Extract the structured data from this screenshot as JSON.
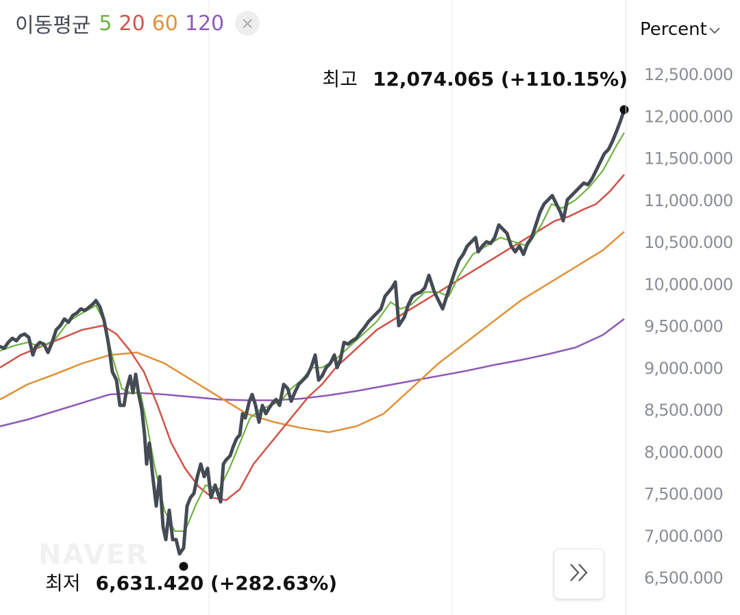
{
  "legend": {
    "title": "이동평균",
    "items": [
      {
        "label": "5",
        "color": "#6db33f"
      },
      {
        "label": "20",
        "color": "#d0554b"
      },
      {
        "label": "60",
        "color": "#e0923a"
      },
      {
        "label": "120",
        "color": "#8e5bb6"
      }
    ],
    "close_icon": "×"
  },
  "unit_selector": {
    "label": "Percent",
    "icon": "chevron-down-icon"
  },
  "annotations": {
    "high": {
      "label": "최고",
      "value": "12,074.065 (+110.15%)"
    },
    "low": {
      "label": "최저",
      "value": "6,631.420 (+282.63%)"
    }
  },
  "watermark": "NAVER",
  "nav_button": {
    "icon": "double-chevron-right-icon"
  },
  "chart_data": {
    "type": "line",
    "ylim": [
      6300,
      12700
    ],
    "y_ticks": [
      "6,500.000",
      "7,000.000",
      "7,500.000",
      "8,000.000",
      "8,500.000",
      "9,000.000",
      "9,500.000",
      "10,000.000",
      "10,500.000",
      "11,000.000",
      "11,500.000",
      "12,000.000",
      "12,500.000"
    ],
    "y_tick_values": [
      6500,
      7000,
      7500,
      8000,
      8500,
      9000,
      9500,
      10000,
      10500,
      11000,
      11500,
      12000,
      12500
    ],
    "grid": "vertical",
    "price": {
      "color": "#454b54",
      "points": [
        [
          0,
          9250
        ],
        [
          6,
          9230
        ],
        [
          12,
          9300
        ],
        [
          18,
          9350
        ],
        [
          24,
          9320
        ],
        [
          30,
          9380
        ],
        [
          36,
          9400
        ],
        [
          42,
          9360
        ],
        [
          48,
          9150
        ],
        [
          52,
          9250
        ],
        [
          58,
          9300
        ],
        [
          64,
          9280
        ],
        [
          70,
          9180
        ],
        [
          76,
          9300
        ],
        [
          82,
          9450
        ],
        [
          88,
          9500
        ],
        [
          94,
          9580
        ],
        [
          100,
          9540
        ],
        [
          106,
          9620
        ],
        [
          112,
          9650
        ],
        [
          118,
          9700
        ],
        [
          124,
          9680
        ],
        [
          130,
          9720
        ],
        [
          136,
          9760
        ],
        [
          140,
          9800
        ],
        [
          146,
          9720
        ],
        [
          152,
          9560
        ],
        [
          158,
          9300
        ],
        [
          164,
          8950
        ],
        [
          170,
          8850
        ],
        [
          175,
          8550
        ],
        [
          181,
          8550
        ],
        [
          185,
          8750
        ],
        [
          190,
          8900
        ],
        [
          194,
          8700
        ],
        [
          198,
          8920
        ],
        [
          202,
          8700
        ],
        [
          207,
          8500
        ],
        [
          211,
          8200
        ],
        [
          214,
          7850
        ],
        [
          218,
          8100
        ],
        [
          223,
          7700
        ],
        [
          228,
          7350
        ],
        [
          233,
          7700
        ],
        [
          238,
          7100
        ],
        [
          242,
          6950
        ],
        [
          247,
          7300
        ],
        [
          252,
          6950
        ],
        [
          257,
          6950
        ],
        [
          262,
          6780
        ],
        [
          268,
          6850
        ],
        [
          273,
          7350
        ],
        [
          278,
          7450
        ],
        [
          283,
          7500
        ],
        [
          288,
          7700
        ],
        [
          293,
          7850
        ],
        [
          298,
          7700
        ],
        [
          303,
          7800
        ],
        [
          308,
          7450
        ],
        [
          314,
          7600
        ],
        [
          318,
          7500
        ],
        [
          322,
          7400
        ],
        [
          326,
          7850
        ],
        [
          330,
          7900
        ],
        [
          336,
          7950
        ],
        [
          340,
          8050
        ],
        [
          345,
          8150
        ],
        [
          350,
          8200
        ],
        [
          354,
          8450
        ],
        [
          358,
          8400
        ],
        [
          364,
          8600
        ],
        [
          368,
          8680
        ],
        [
          373,
          8550
        ],
        [
          378,
          8350
        ],
        [
          383,
          8550
        ],
        [
          388,
          8450
        ],
        [
          393,
          8520
        ],
        [
          398,
          8580
        ],
        [
          403,
          8620
        ],
        [
          408,
          8550
        ],
        [
          414,
          8800
        ],
        [
          420,
          8750
        ],
        [
          425,
          8600
        ],
        [
          430,
          8700
        ],
        [
          436,
          8800
        ],
        [
          442,
          8850
        ],
        [
          448,
          8900
        ],
        [
          454,
          9000
        ],
        [
          460,
          9150
        ],
        [
          465,
          8850
        ],
        [
          470,
          8900
        ],
        [
          476,
          9000
        ],
        [
          482,
          9050
        ],
        [
          488,
          9150
        ],
        [
          492,
          9000
        ],
        [
          497,
          9100
        ],
        [
          502,
          9300
        ],
        [
          508,
          9280
        ],
        [
          514,
          9320
        ],
        [
          520,
          9350
        ],
        [
          526,
          9420
        ],
        [
          532,
          9480
        ],
        [
          538,
          9550
        ],
        [
          544,
          9600
        ],
        [
          550,
          9650
        ],
        [
          556,
          9700
        ],
        [
          562,
          9850
        ],
        [
          567,
          9900
        ],
        [
          572,
          9950
        ],
        [
          577,
          10020
        ],
        [
          582,
          9500
        ],
        [
          586,
          9550
        ],
        [
          590,
          9600
        ],
        [
          596,
          9750
        ],
        [
          602,
          9850
        ],
        [
          608,
          9880
        ],
        [
          614,
          9900
        ],
        [
          620,
          9950
        ],
        [
          626,
          10100
        ],
        [
          630,
          10000
        ],
        [
          634,
          9900
        ],
        [
          640,
          9800
        ],
        [
          646,
          9700
        ],
        [
          652,
          9850
        ],
        [
          658,
          10000
        ],
        [
          664,
          10150
        ],
        [
          670,
          10280
        ],
        [
          676,
          10350
        ],
        [
          682,
          10450
        ],
        [
          688,
          10500
        ],
        [
          694,
          10550
        ],
        [
          698,
          10380
        ],
        [
          704,
          10450
        ],
        [
          710,
          10500
        ],
        [
          716,
          10480
        ],
        [
          722,
          10550
        ],
        [
          728,
          10700
        ],
        [
          734,
          10650
        ],
        [
          740,
          10600
        ],
        [
          746,
          10450
        ],
        [
          752,
          10380
        ],
        [
          758,
          10450
        ],
        [
          764,
          10350
        ],
        [
          770,
          10480
        ],
        [
          776,
          10550
        ],
        [
          782,
          10700
        ],
        [
          788,
          10850
        ],
        [
          794,
          10950
        ],
        [
          800,
          11000
        ],
        [
          806,
          11050
        ],
        [
          812,
          10950
        ],
        [
          818,
          10850
        ],
        [
          822,
          10750
        ],
        [
          828,
          11000
        ],
        [
          834,
          11050
        ],
        [
          840,
          11100
        ],
        [
          846,
          11150
        ],
        [
          852,
          11200
        ],
        [
          858,
          11180
        ],
        [
          864,
          11250
        ],
        [
          870,
          11350
        ],
        [
          876,
          11450
        ],
        [
          882,
          11550
        ],
        [
          888,
          11600
        ],
        [
          894,
          11700
        ],
        [
          900,
          11820
        ],
        [
          906,
          11950
        ],
        [
          911,
          12074
        ]
      ]
    },
    "series": [
      {
        "name": "5",
        "color": "#6db33f",
        "points": [
          [
            0,
            9200
          ],
          [
            20,
            9260
          ],
          [
            40,
            9300
          ],
          [
            60,
            9250
          ],
          [
            80,
            9330
          ],
          [
            100,
            9550
          ],
          [
            120,
            9650
          ],
          [
            140,
            9740
          ],
          [
            152,
            9550
          ],
          [
            165,
            9100
          ],
          [
            178,
            8750
          ],
          [
            190,
            8700
          ],
          [
            205,
            8700
          ],
          [
            215,
            8300
          ],
          [
            225,
            7850
          ],
          [
            240,
            7300
          ],
          [
            255,
            7050
          ],
          [
            270,
            7050
          ],
          [
            285,
            7350
          ],
          [
            300,
            7600
          ],
          [
            320,
            7550
          ],
          [
            335,
            7800
          ],
          [
            350,
            8100
          ],
          [
            365,
            8400
          ],
          [
            380,
            8500
          ],
          [
            395,
            8550
          ],
          [
            410,
            8600
          ],
          [
            425,
            8750
          ],
          [
            440,
            8850
          ],
          [
            455,
            9000
          ],
          [
            470,
            9000
          ],
          [
            490,
            9100
          ],
          [
            510,
            9250
          ],
          [
            530,
            9400
          ],
          [
            550,
            9550
          ],
          [
            570,
            9780
          ],
          [
            585,
            9700
          ],
          [
            600,
            9750
          ],
          [
            620,
            9900
          ],
          [
            640,
            9900
          ],
          [
            655,
            9850
          ],
          [
            670,
            10100
          ],
          [
            690,
            10350
          ],
          [
            710,
            10450
          ],
          [
            730,
            10550
          ],
          [
            750,
            10500
          ],
          [
            770,
            10450
          ],
          [
            790,
            10700
          ],
          [
            805,
            10950
          ],
          [
            820,
            10900
          ],
          [
            840,
            11000
          ],
          [
            860,
            11150
          ],
          [
            880,
            11350
          ],
          [
            900,
            11650
          ],
          [
            911,
            11800
          ]
        ]
      },
      {
        "name": "20",
        "color": "#d0554b",
        "points": [
          [
            0,
            9000
          ],
          [
            30,
            9150
          ],
          [
            60,
            9250
          ],
          [
            90,
            9350
          ],
          [
            120,
            9450
          ],
          [
            150,
            9500
          ],
          [
            170,
            9400
          ],
          [
            190,
            9200
          ],
          [
            210,
            8950
          ],
          [
            230,
            8550
          ],
          [
            250,
            8100
          ],
          [
            270,
            7800
          ],
          [
            290,
            7580
          ],
          [
            310,
            7450
          ],
          [
            330,
            7420
          ],
          [
            350,
            7550
          ],
          [
            370,
            7850
          ],
          [
            390,
            8050
          ],
          [
            410,
            8250
          ],
          [
            430,
            8450
          ],
          [
            450,
            8650
          ],
          [
            470,
            8800
          ],
          [
            490,
            9000
          ],
          [
            510,
            9150
          ],
          [
            530,
            9300
          ],
          [
            550,
            9450
          ],
          [
            570,
            9550
          ],
          [
            590,
            9650
          ],
          [
            610,
            9750
          ],
          [
            630,
            9850
          ],
          [
            650,
            9950
          ],
          [
            670,
            10050
          ],
          [
            690,
            10150
          ],
          [
            710,
            10250
          ],
          [
            730,
            10350
          ],
          [
            750,
            10450
          ],
          [
            770,
            10550
          ],
          [
            790,
            10650
          ],
          [
            810,
            10750
          ],
          [
            830,
            10800
          ],
          [
            850,
            10880
          ],
          [
            870,
            10950
          ],
          [
            890,
            11100
          ],
          [
            911,
            11300
          ]
        ]
      },
      {
        "name": "60",
        "color": "#e0923a",
        "points": [
          [
            0,
            8620
          ],
          [
            40,
            8800
          ],
          [
            80,
            8920
          ],
          [
            120,
            9050
          ],
          [
            160,
            9150
          ],
          [
            200,
            9180
          ],
          [
            240,
            9050
          ],
          [
            280,
            8850
          ],
          [
            320,
            8650
          ],
          [
            360,
            8450
          ],
          [
            400,
            8350
          ],
          [
            440,
            8280
          ],
          [
            480,
            8230
          ],
          [
            520,
            8300
          ],
          [
            560,
            8450
          ],
          [
            600,
            8750
          ],
          [
            640,
            9050
          ],
          [
            680,
            9300
          ],
          [
            720,
            9550
          ],
          [
            760,
            9800
          ],
          [
            800,
            10000
          ],
          [
            840,
            10200
          ],
          [
            880,
            10400
          ],
          [
            911,
            10620
          ]
        ]
      },
      {
        "name": "120",
        "color": "#8e5bb6",
        "points": [
          [
            0,
            8300
          ],
          [
            40,
            8380
          ],
          [
            80,
            8480
          ],
          [
            120,
            8580
          ],
          [
            160,
            8680
          ],
          [
            200,
            8700
          ],
          [
            240,
            8680
          ],
          [
            280,
            8650
          ],
          [
            320,
            8620
          ],
          [
            360,
            8610
          ],
          [
            400,
            8610
          ],
          [
            440,
            8630
          ],
          [
            480,
            8670
          ],
          [
            520,
            8720
          ],
          [
            560,
            8780
          ],
          [
            600,
            8840
          ],
          [
            640,
            8900
          ],
          [
            680,
            8960
          ],
          [
            720,
            9030
          ],
          [
            760,
            9090
          ],
          [
            800,
            9160
          ],
          [
            840,
            9240
          ],
          [
            880,
            9390
          ],
          [
            911,
            9580
          ]
        ]
      }
    ],
    "markers": [
      {
        "x": 911,
        "y": 12074,
        "label": "high"
      },
      {
        "x": 268,
        "y": 6631,
        "label": "low"
      }
    ]
  }
}
